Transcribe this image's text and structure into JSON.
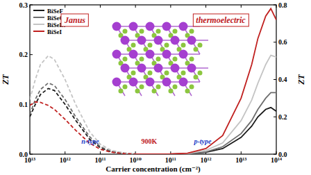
{
  "chart_data": [
    {
      "type": "line",
      "x_label": "Carrier concentration (cm⁻²)",
      "y_label": "ZT",
      "log": "x",
      "xlim": [
        10000000000000.0,
        10000000000.0
      ],
      "xticks": [
        {
          "value": 10000000000000.0,
          "label": "10¹³"
        },
        {
          "value": 1000000000000.0,
          "label": "10¹²"
        },
        {
          "value": 100000000000.0,
          "label": "10¹¹"
        },
        {
          "value": 10000000000.0,
          "label": "10¹⁰"
        }
      ],
      "ylim": [
        0,
        0.3
      ],
      "yticks": [
        {
          "value": 0,
          "label": "0.0"
        },
        0.1,
        0.2,
        0.3
      ],
      "line_style": "dashed",
      "annotations": [
        "Janus",
        "n-type",
        "900K"
      ],
      "x": [
        10000000000000.0,
        7000000000000.0,
        5000000000000.0,
        3000000000000.0,
        2000000000000.0,
        1000000000000.0,
        500000000000.0,
        200000000000.0,
        100000000000.0,
        50000000000.0,
        20000000000.0,
        10000000000.0
      ],
      "series": [
        {
          "name": "BiSeF",
          "color": "#1a1a1a",
          "values": [
            0.075,
            0.1,
            0.12,
            0.132,
            0.128,
            0.1,
            0.068,
            0.03,
            0.013,
            0.005,
            0.001,
            0
          ]
        },
        {
          "name": "BiSeCl",
          "color": "#6e6e6e",
          "values": [
            0.08,
            0.11,
            0.13,
            0.143,
            0.138,
            0.11,
            0.075,
            0.035,
            0.015,
            0.006,
            0.002,
            0.001
          ]
        },
        {
          "name": "BiSeBr",
          "color": "#c4c4c4",
          "values": [
            0.11,
            0.15,
            0.18,
            0.198,
            0.19,
            0.15,
            0.1,
            0.045,
            0.02,
            0.008,
            0.002,
            0.001
          ]
        },
        {
          "name": "BiSeI",
          "color": "#c0201f",
          "values": [
            0.098,
            0.105,
            0.104,
            0.098,
            0.09,
            0.07,
            0.048,
            0.022,
            0.01,
            0.004,
            0.001,
            0
          ]
        }
      ]
    },
    {
      "type": "line",
      "y_label": "ZT",
      "log": "x",
      "xlim": [
        10000000000.0,
        100000000000000.0
      ],
      "xticks": [
        {
          "value": 100000000000.0,
          "label": "10¹¹"
        },
        {
          "value": 1000000000000.0,
          "label": "10¹²"
        },
        {
          "value": 10000000000000.0,
          "label": "10¹³"
        },
        {
          "value": 100000000000000.0,
          "label": "10¹⁴"
        }
      ],
      "ylim": [
        0,
        0.8
      ],
      "yticks": [
        {
          "value": 0,
          "label": "0.0"
        },
        0.2,
        0.4,
        0.6,
        0.8
      ],
      "line_style": "solid",
      "legend": "upper left",
      "annotations": [
        "thermoelectric",
        "p-type"
      ],
      "x": [
        10000000000.0,
        100000000000.0,
        300000000000.0,
        1000000000000.0,
        3000000000000.0,
        10000000000000.0,
        20000000000000.0,
        30000000000000.0,
        50000000000000.0,
        70000000000000.0,
        100000000000000.0
      ],
      "series": [
        {
          "name": "BiSeF",
          "color": "#1a1a1a",
          "values": [
            0,
            0,
            0.002,
            0.01,
            0.03,
            0.09,
            0.15,
            0.2,
            0.24,
            0.25,
            0.23
          ]
        },
        {
          "name": "BiSeCl",
          "color": "#6e6e6e",
          "values": [
            0,
            0,
            0.002,
            0.012,
            0.04,
            0.11,
            0.18,
            0.24,
            0.3,
            0.33,
            0.33
          ]
        },
        {
          "name": "BiSeBr",
          "color": "#c4c4c4",
          "values": [
            0,
            0,
            0.003,
            0.02,
            0.06,
            0.18,
            0.29,
            0.38,
            0.48,
            0.53,
            0.52
          ]
        },
        {
          "name": "BiSeI",
          "color": "#c0201f",
          "values": [
            0,
            0.001,
            0.005,
            0.03,
            0.1,
            0.3,
            0.48,
            0.62,
            0.74,
            0.78,
            0.72
          ]
        }
      ]
    }
  ]
}
